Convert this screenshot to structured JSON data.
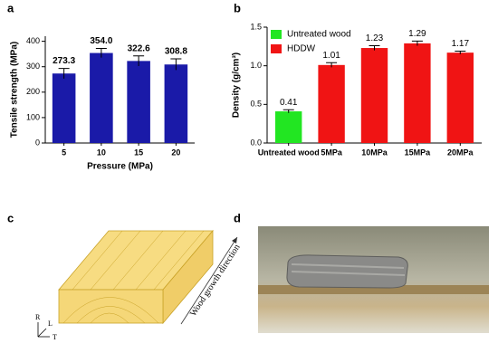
{
  "chart_data": [
    {
      "type": "bar",
      "panel": "a",
      "categories": [
        "5",
        "10",
        "15",
        "20"
      ],
      "values": [
        273.3,
        354.0,
        322.6,
        308.8
      ],
      "value_labels": [
        "273.3",
        "354.0",
        "322.6",
        "308.8"
      ],
      "errors": [
        20,
        18,
        20,
        22
      ],
      "color": "#1a1aa8",
      "xlabel": "Pressure (MPa)",
      "ylabel": "Tensile strength (MPa)",
      "ylim": [
        0,
        420
      ],
      "yticks": [
        0,
        100,
        200,
        300,
        400
      ]
    },
    {
      "type": "bar",
      "panel": "b",
      "categories": [
        "Untreated wood",
        "5MPa",
        "10MPa",
        "15MPa",
        "20MPa"
      ],
      "series": [
        {
          "name": "Untreated wood",
          "color": "#22e622",
          "values": [
            0.41,
            null,
            null,
            null,
            null
          ],
          "errors": [
            0.02,
            null,
            null,
            null,
            null
          ]
        },
        {
          "name": "HDDW",
          "color": "#f01414",
          "values": [
            null,
            1.01,
            1.23,
            1.29,
            1.17
          ],
          "errors": [
            null,
            0.03,
            0.03,
            0.03,
            0.02
          ]
        }
      ],
      "ylabel": "Density (g/cm³)",
      "ylim": [
        0,
        1.5
      ],
      "yticks": [
        {
          "value": 0,
          "label": "0.0"
        },
        0.5,
        {
          "value": 1,
          "label": "1.0"
        },
        1.5
      ],
      "legend": "top-left"
    }
  ],
  "figure": {
    "panel_labels": [
      "a",
      "b",
      "c",
      "d"
    ],
    "illustration": {
      "annotation": "Wood growth direction",
      "axes": [
        "R",
        "L",
        "T"
      ]
    }
  }
}
